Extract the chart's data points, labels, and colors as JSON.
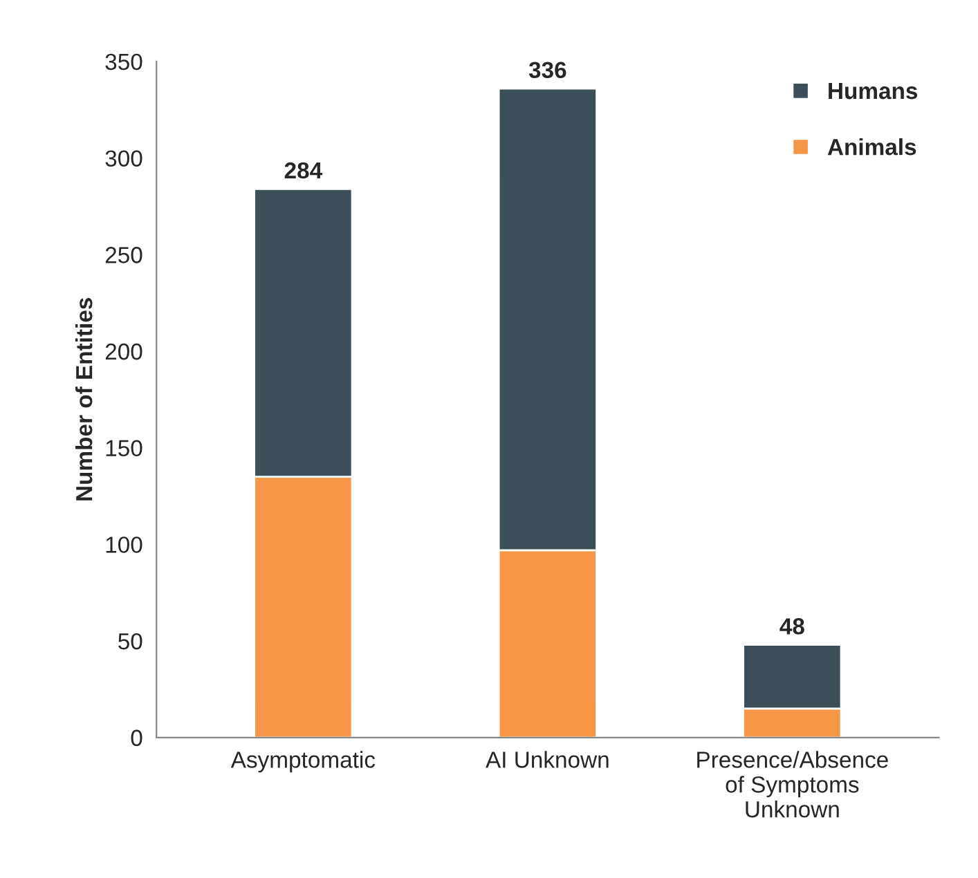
{
  "chart_data": {
    "type": "bar",
    "stacked": true,
    "ylabel": "Number of Entities",
    "categories": [
      "Asymptomatic",
      "AI Unknown",
      "Presence/Absence\nof Symptoms\nUnknown"
    ],
    "series": [
      {
        "name": "Animals",
        "color": "#f79646",
        "values": [
          135,
          97,
          15
        ]
      },
      {
        "name": "Humans",
        "color": "#3c4f59",
        "values": [
          149,
          239,
          33
        ]
      }
    ],
    "totals": [
      "284",
      "336",
      "48"
    ],
    "ylim": [
      0,
      350
    ],
    "yticks": [
      0,
      50,
      100,
      150,
      200,
      250,
      300,
      350
    ],
    "grid": false,
    "legend": "top right"
  }
}
